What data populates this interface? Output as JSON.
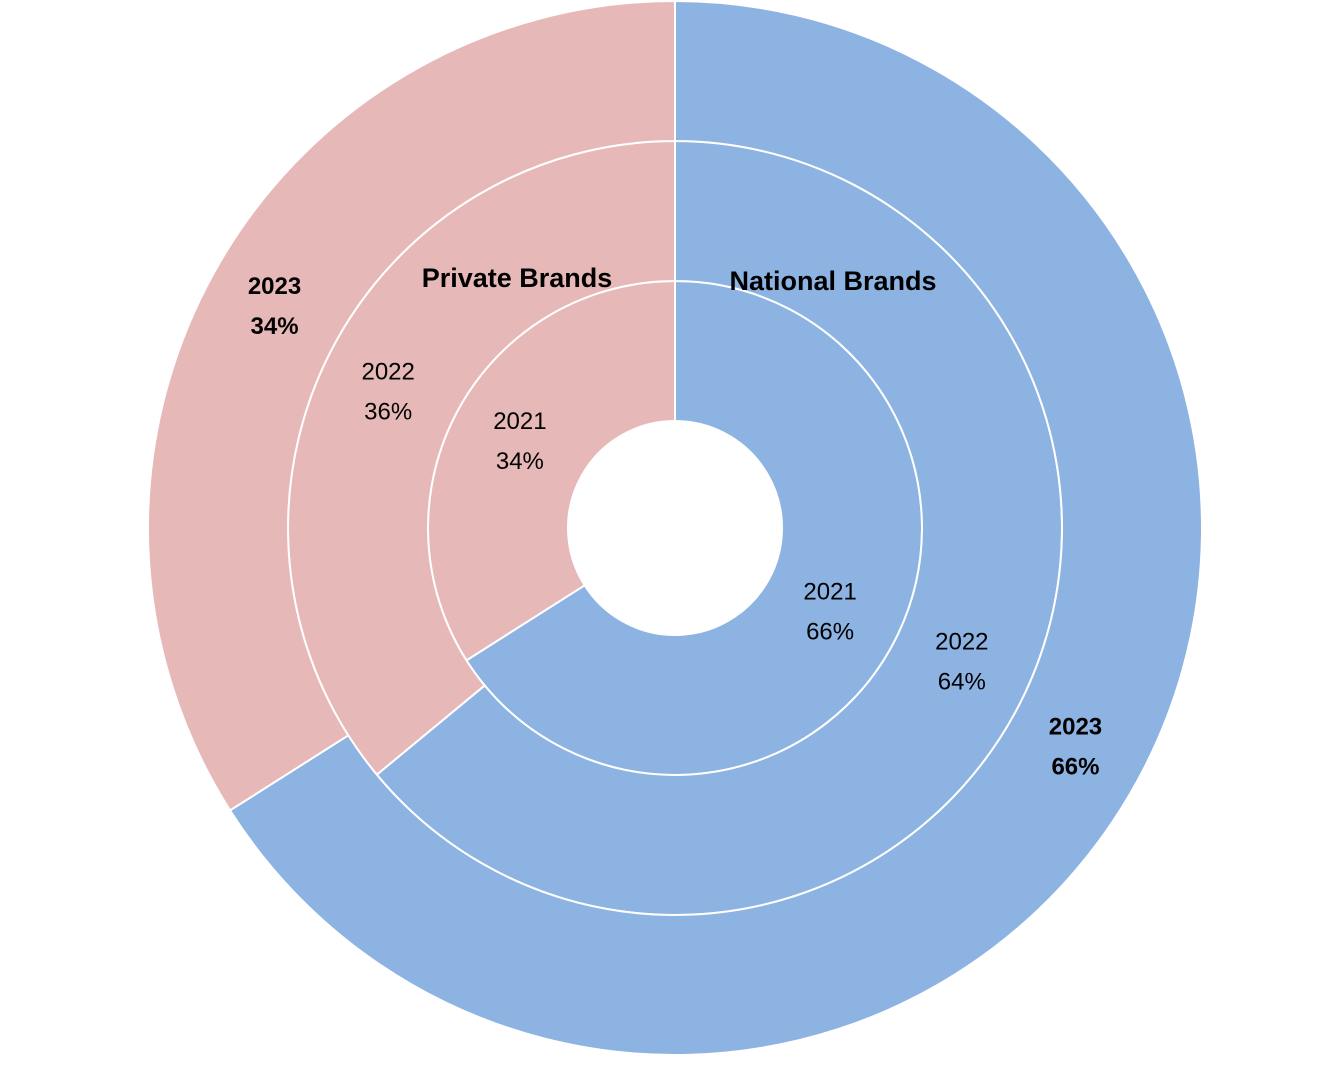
{
  "chart_data": {
    "type": "donut",
    "categories": [
      "National Brands",
      "Private Brands"
    ],
    "colors": [
      "#8db3e2",
      "#e6b8b7"
    ],
    "series": [
      {
        "name": "2021",
        "values": [
          66,
          34
        ],
        "value_labels": [
          "66%",
          "34%"
        ]
      },
      {
        "name": "2022",
        "values": [
          64,
          36
        ],
        "value_labels": [
          "64%",
          "36%"
        ]
      },
      {
        "name": "2023",
        "values": [
          66,
          34
        ],
        "value_labels": [
          "66%",
          "34%"
        ]
      }
    ]
  }
}
